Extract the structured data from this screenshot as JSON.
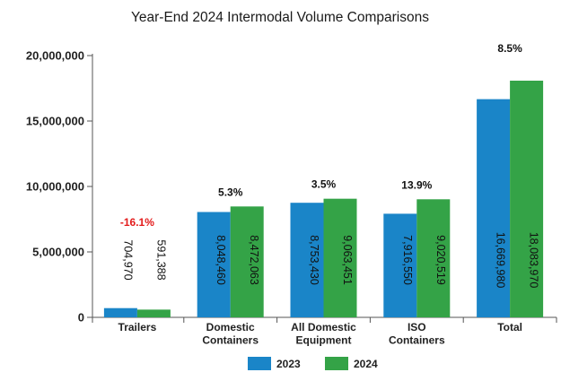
{
  "chart_data": {
    "type": "bar",
    "title": "Year-End 2024 Intermodal Volume Comparisons",
    "categories": [
      [
        "Trailers"
      ],
      [
        "Domestic",
        "Containers"
      ],
      [
        "All Domestic",
        "Equipment"
      ],
      [
        "ISO",
        "Containers"
      ],
      [
        "Total"
      ]
    ],
    "series": [
      {
        "name": "2023",
        "color": "#1a85c8",
        "values": [
          704970,
          8048460,
          8753430,
          7916550,
          16669980
        ],
        "labels": [
          "704,970",
          "8,048,460",
          "8,753,430",
          "7,916,550",
          "16,669,980"
        ]
      },
      {
        "name": "2024",
        "color": "#34a347",
        "values": [
          591388,
          8472063,
          9063451,
          9020519,
          18083970
        ],
        "labels": [
          "591,388",
          "8,472,063",
          "9,063,451",
          "9,020,519",
          "18,083,970"
        ]
      }
    ],
    "changes": [
      "-16.1%",
      "5.3%",
      "3.5%",
      "13.9%",
      "8.5%"
    ],
    "change_colors": [
      "#e31b1b",
      "#111111",
      "#111111",
      "#111111",
      "#111111"
    ],
    "ylim": [
      0,
      20000000
    ],
    "yticks": [
      0,
      5000000,
      10000000,
      15000000,
      20000000
    ],
    "ytick_labels": [
      "0",
      "5,000,000",
      "10,000,000",
      "15,000,000",
      "20,000,000"
    ],
    "xlabel": "",
    "ylabel": "",
    "legend": "bottom-center",
    "grid": false
  }
}
